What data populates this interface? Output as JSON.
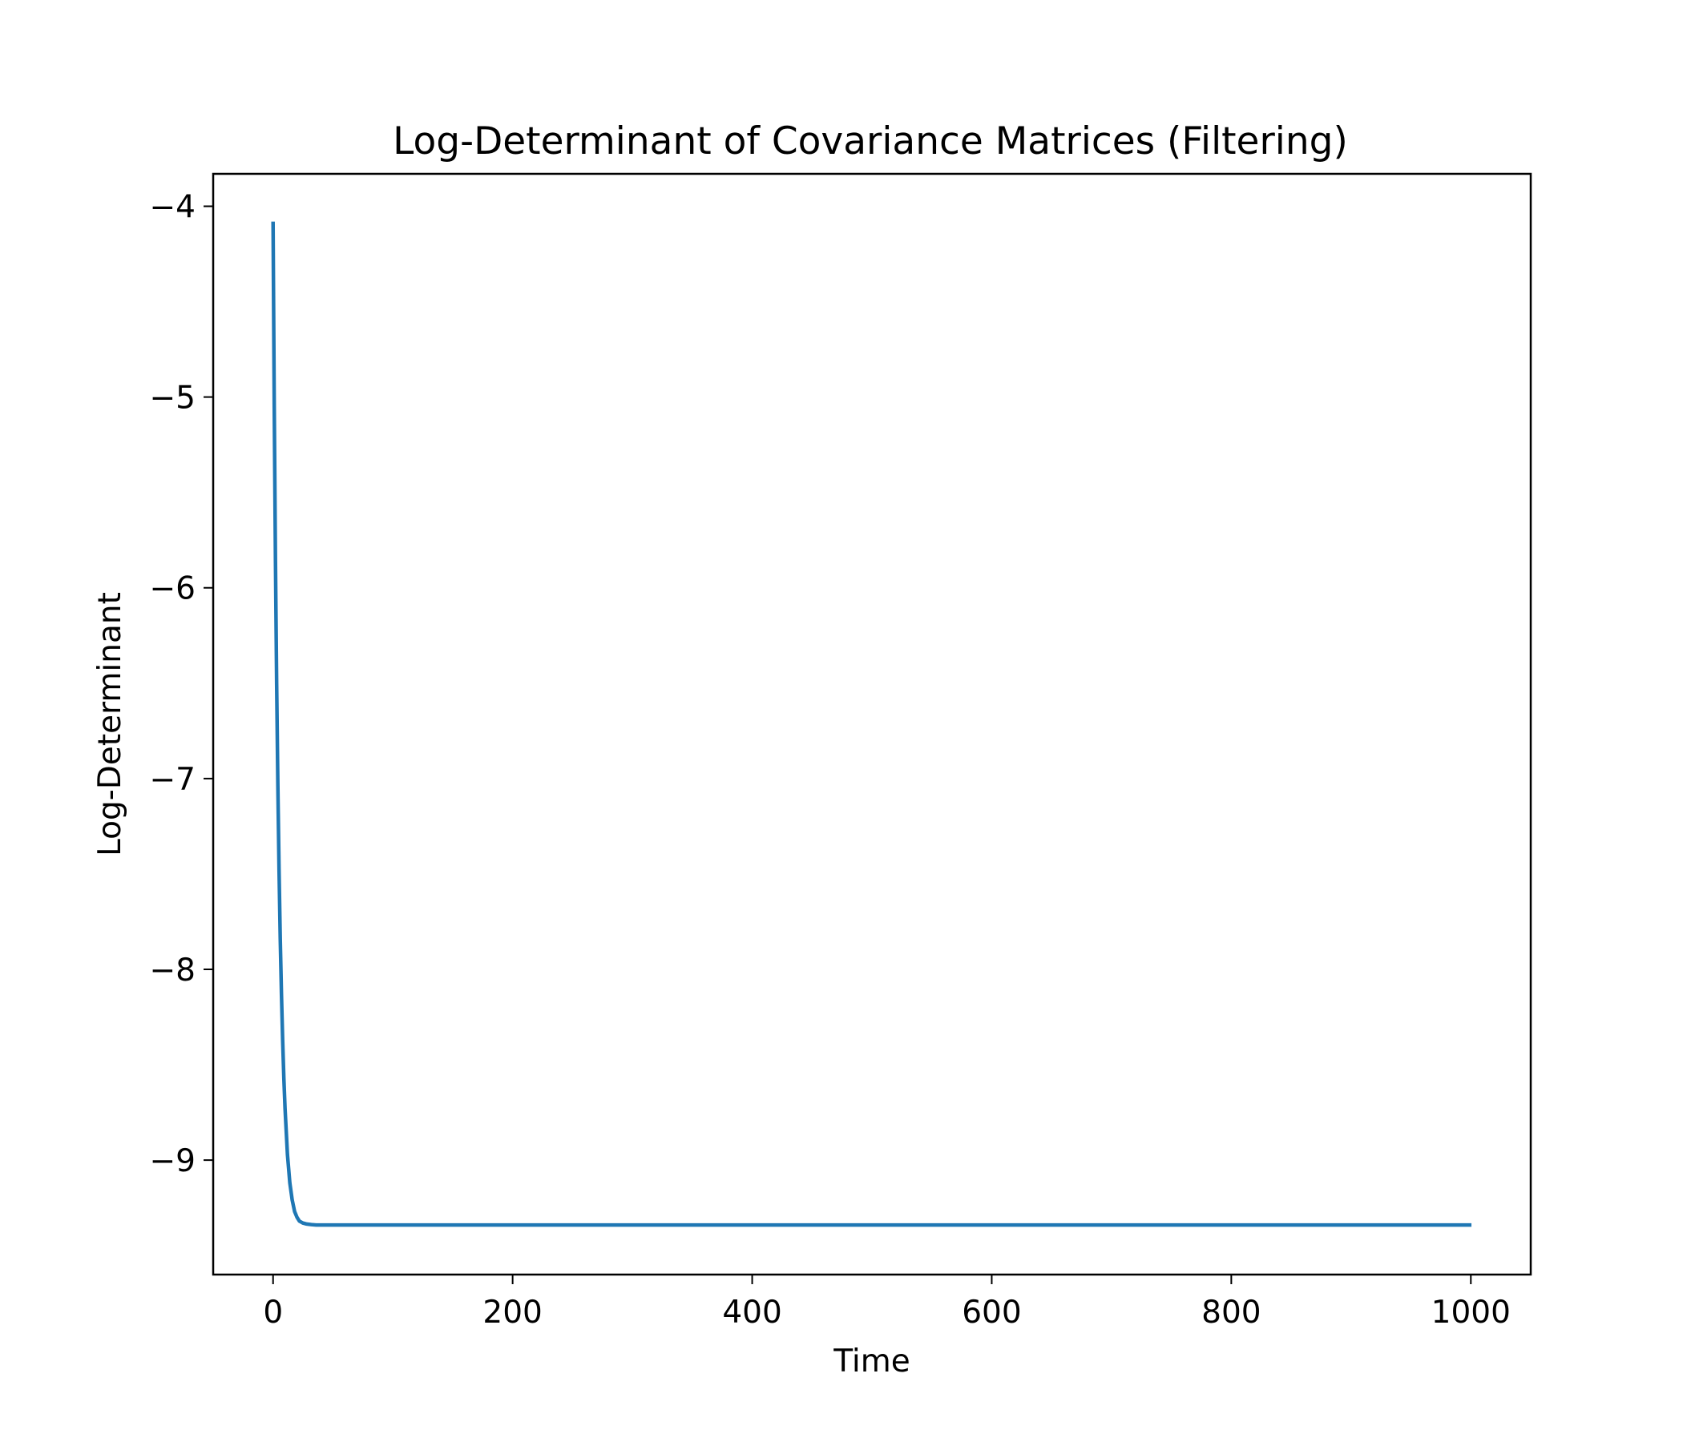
{
  "chart_data": {
    "type": "line",
    "title": "Log-Determinant of Covariance Matrices (Filtering)",
    "xlabel": "Time",
    "ylabel": "Log-Determinant",
    "xlim": [
      -50,
      1050
    ],
    "ylim": [
      -9.6,
      -3.83
    ],
    "x_ticks": [
      0,
      200,
      400,
      600,
      800,
      1000
    ],
    "x_tick_labels": [
      "0",
      "200",
      "400",
      "600",
      "800",
      "1000"
    ],
    "y_ticks": [
      -4,
      -5,
      -6,
      -7,
      -8,
      -9
    ],
    "y_tick_labels": [
      "−4",
      "−5",
      "−6",
      "−7",
      "−8",
      "−9"
    ],
    "grid": false,
    "legend": "none",
    "series": [
      {
        "color": "#1f77b4",
        "x": [
          0,
          1,
          2,
          3,
          4,
          5,
          6,
          7,
          8,
          9,
          10,
          12,
          14,
          16,
          18,
          20,
          22,
          25,
          28,
          32,
          36,
          40,
          50,
          100,
          200,
          300,
          400,
          500,
          600,
          700,
          800,
          900,
          999
        ],
        "y": [
          -4.09,
          -5.06,
          -5.86,
          -6.51,
          -7.04,
          -7.48,
          -7.84,
          -8.13,
          -8.37,
          -8.57,
          -8.73,
          -8.97,
          -9.12,
          -9.21,
          -9.27,
          -9.3,
          -9.32,
          -9.33,
          -9.335,
          -9.338,
          -9.34,
          -9.34,
          -9.34,
          -9.34,
          -9.34,
          -9.34,
          -9.34,
          -9.34,
          -9.34,
          -9.34,
          -9.34,
          -9.34,
          -9.34
        ]
      }
    ]
  }
}
